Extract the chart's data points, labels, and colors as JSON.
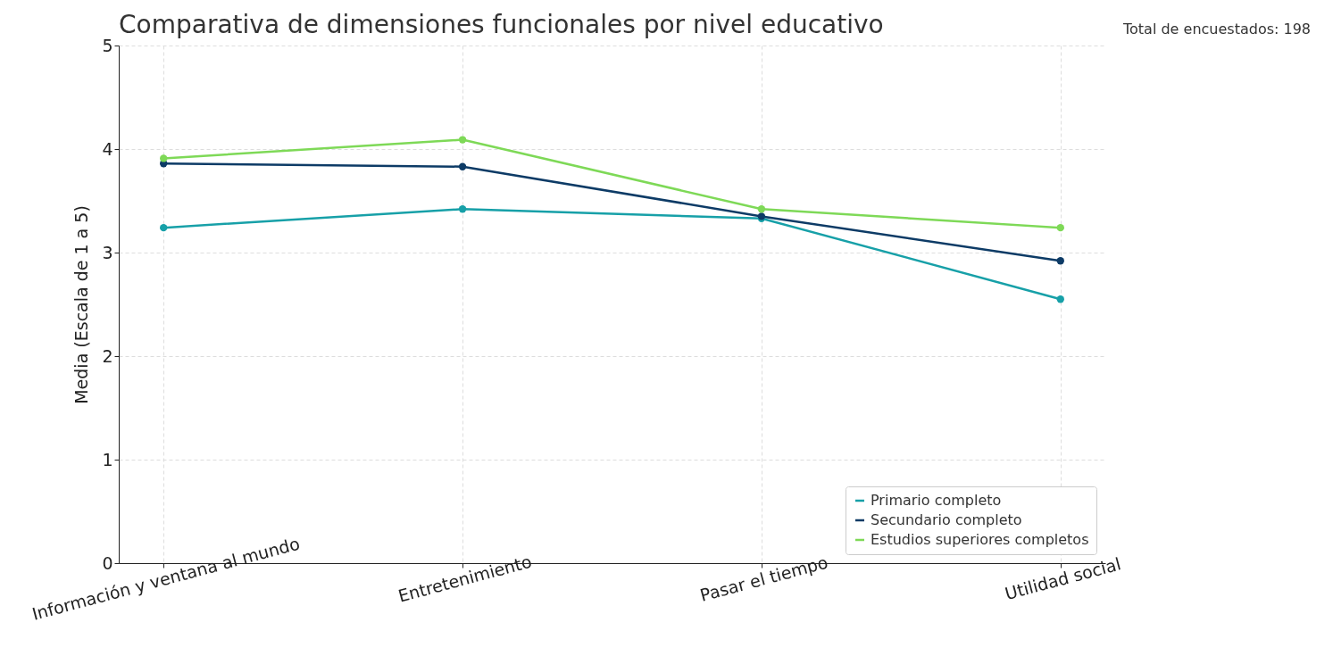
{
  "chart_data": {
    "type": "line",
    "title": "Comparativa de dimensiones funcionales por nivel educativo",
    "ylabel": "Media (Escala de 1 a 5)",
    "annotations": [
      "Total de encuestados: 198"
    ],
    "categories": [
      "Información y ventana al mundo",
      "Entretenimiento",
      "Pasar el tiempo",
      "Utilidad social"
    ],
    "series": [
      {
        "name": "Primario completo",
        "color": "#17a0a8",
        "values": [
          3.24,
          3.42,
          3.33,
          2.55
        ]
      },
      {
        "name": "Secundario completo",
        "color": "#0d3b66",
        "values": [
          3.86,
          3.83,
          3.35,
          2.92
        ]
      },
      {
        "name": "Estudios superiores completos",
        "color": "#7ed957",
        "values": [
          3.91,
          4.09,
          3.42,
          3.24
        ]
      }
    ],
    "ylim": [
      0,
      5
    ],
    "yticks": [
      0,
      1,
      2,
      3,
      4,
      5
    ],
    "grid": true,
    "legend": "bottom right",
    "marker": "circle",
    "line_style": "solid"
  }
}
